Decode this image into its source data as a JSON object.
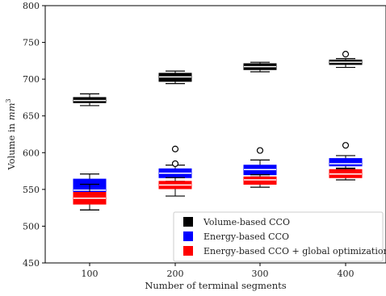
{
  "chart_data": {
    "type": "box",
    "xlabel": "Number of terminal segments",
    "ylabel_text": "Volume in ",
    "ylabel_unit": "mm",
    "ylabel_exponent": "3",
    "ylim": [
      450,
      800
    ],
    "yticks": [
      "450",
      "500",
      "550",
      "600",
      "650",
      "700",
      "750",
      "800"
    ],
    "categories": [
      "100",
      "200",
      "300",
      "400"
    ],
    "legend_position": "lower-right",
    "series": [
      {
        "name": "Volume-based CCO",
        "color": "#000000",
        "median_color": "#ffffff",
        "boxes": [
          {
            "whisker_low": 664,
            "q1": 668,
            "median": 671,
            "q3": 675,
            "whisker_high": 680,
            "outliers": []
          },
          {
            "whisker_low": 694,
            "q1": 697,
            "median": 703,
            "q3": 708,
            "whisker_high": 711,
            "outliers": []
          },
          {
            "whisker_low": 710,
            "q1": 713,
            "median": 717,
            "q3": 721,
            "whisker_high": 723,
            "outliers": []
          },
          {
            "whisker_low": 716,
            "q1": 720,
            "median": 723,
            "q3": 726,
            "whisker_high": 728,
            "outliers": [
              734
            ]
          }
        ]
      },
      {
        "name": "Energy-based CCO",
        "color": "#0000ff",
        "median_color": "#ffffff",
        "boxes": [
          {
            "whisker_low": 522,
            "q1": 542,
            "median": 549,
            "q3": 564,
            "whisker_high": 571,
            "outliers": []
          },
          {
            "whisker_low": 561,
            "q1": 566,
            "median": 572,
            "q3": 578,
            "whisker_high": 583,
            "outliers": [
              585,
              605
            ]
          },
          {
            "whisker_low": 567,
            "q1": 570,
            "median": 577,
            "q3": 583,
            "whisker_high": 590,
            "outliers": [
              603
            ]
          },
          {
            "whisker_low": 578,
            "q1": 582,
            "median": 585,
            "q3": 592,
            "whisker_high": 596,
            "outliers": [
              610
            ]
          }
        ]
      },
      {
        "name": "Energy-based CCO + global optimization",
        "color": "#ff0000",
        "median_color": "#ffffff",
        "boxes": [
          {
            "whisker_low": 522,
            "q1": 530,
            "median": 538,
            "q3": 546,
            "whisker_high": 557,
            "outliers": []
          },
          {
            "whisker_low": 541,
            "q1": 551,
            "median": 556,
            "q3": 561,
            "whisker_high": 566,
            "outliers": []
          },
          {
            "whisker_low": 553,
            "q1": 557,
            "median": 563,
            "q3": 567,
            "whisker_high": 570,
            "outliers": []
          },
          {
            "whisker_low": 563,
            "q1": 566,
            "median": 571,
            "q3": 577,
            "whisker_high": 579,
            "outliers": []
          }
        ]
      }
    ]
  }
}
